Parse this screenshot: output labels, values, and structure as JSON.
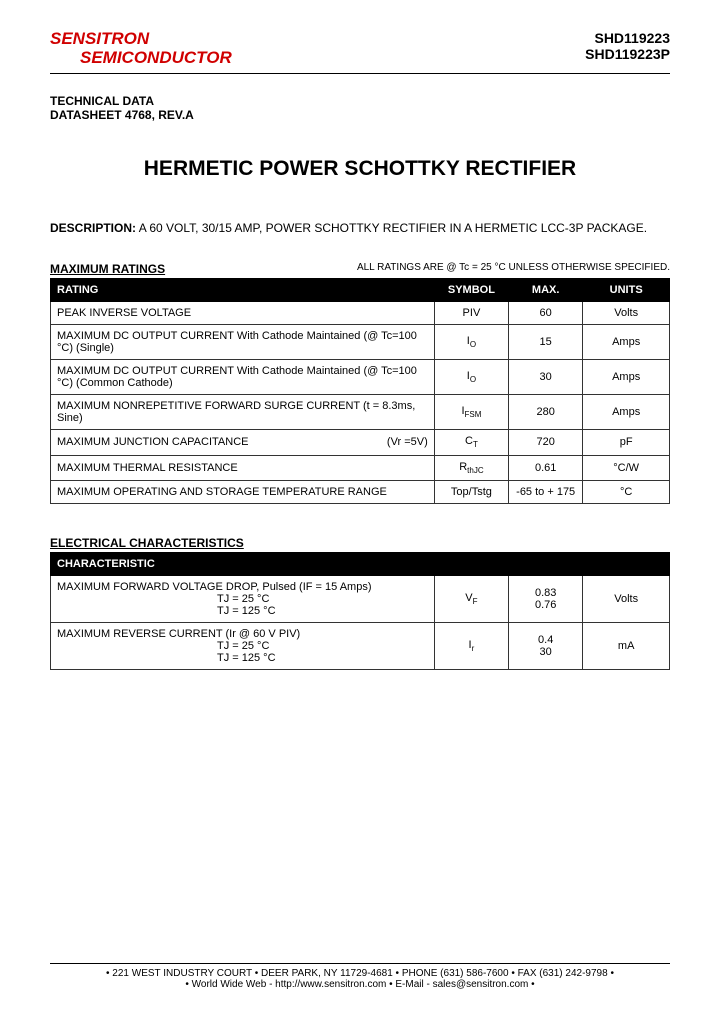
{
  "header": {
    "logo_line1": "SENSITRON",
    "logo_line2": "SEMICONDUCTOR",
    "part1": "SHD119223",
    "part2": "SHD119223P"
  },
  "tech_data": {
    "line1": "TECHNICAL DATA",
    "line2": "DATASHEET 4768, REV.A"
  },
  "title": "HERMETIC POWER SCHOTTKY RECTIFIER",
  "description_label": "DESCRIPTION:",
  "description_text": " A 60 VOLT, 30/15 AMP, POWER SCHOTTKY RECTIFIER IN A HERMETIC LCC-3P PACKAGE.",
  "max_ratings_label": "MAXIMUM RATINGS",
  "ratings_note": "ALL RATINGS ARE @ Tc = 25 °C UNLESS OTHERWISE SPECIFIED.",
  "ratings_headers": {
    "rating": "RATING",
    "symbol": "SYMBOL",
    "max": "MAX.",
    "units": "UNITS"
  },
  "ratings_rows": [
    {
      "rating": "PEAK INVERSE VOLTAGE",
      "symbol": "PIV",
      "max": "60",
      "units": "Volts"
    },
    {
      "rating": "MAXIMUM DC OUTPUT CURRENT With Cathode Maintained (@ Tc=100 °C) (Single)",
      "symbol": "I",
      "symbol_sub": "O",
      "max": "15",
      "units": "Amps"
    },
    {
      "rating": "MAXIMUM DC OUTPUT CURRENT With Cathode Maintained (@ Tc=100 °C) (Common Cathode)",
      "symbol": "I",
      "symbol_sub": "O",
      "max": "30",
      "units": "Amps"
    },
    {
      "rating": "MAXIMUM NONREPETITIVE FORWARD SURGE CURRENT (t = 8.3ms, Sine)",
      "symbol": "I",
      "symbol_sub": "FSM",
      "max": "280",
      "units": "Amps"
    },
    {
      "rating": "MAXIMUM JUNCTION CAPACITANCE",
      "rating_suffix": "(Vr =5V)",
      "symbol": "C",
      "symbol_sub": "T",
      "max": "720",
      "units": "pF"
    },
    {
      "rating": "MAXIMUM THERMAL RESISTANCE",
      "symbol": "R",
      "symbol_sub": "thJC",
      "max": "0.61",
      "units": "°C/W"
    },
    {
      "rating": "MAXIMUM OPERATING AND STORAGE TEMPERATURE RANGE",
      "symbol": "Top/Tstg",
      "max": "-65 to + 175",
      "units": "°C"
    }
  ],
  "elec_label": "ELECTRICAL CHARACTERISTICS",
  "elec_header": "CHARACTERISTIC",
  "elec_rows": [
    {
      "line1": "MAXIMUM FORWARD VOLTAGE DROP, Pulsed   (IF = 15 Amps)",
      "cond1": "TJ = 25 °C",
      "cond2": "TJ = 125 °C",
      "symbol": "V",
      "symbol_sub": "F",
      "val1": "0.83",
      "val2": "0.76",
      "units": "Volts"
    },
    {
      "line1": "MAXIMUM REVERSE CURRENT (Ir @ 60 V PIV)",
      "cond1": "TJ = 25 °C",
      "cond2": "TJ = 125 °C",
      "symbol": "I",
      "symbol_sub": "r",
      "val1": "0.4",
      "val2": "30",
      "units": "mA"
    }
  ],
  "footer": {
    "line1": "• 221 WEST INDUSTRY COURT • DEER PARK, NY 11729-4681 • PHONE (631) 586-7600 • FAX (631) 242-9798 •",
    "line2": "• World Wide Web - http://www.sensitron.com • E-Mail - sales@sensitron.com •"
  }
}
